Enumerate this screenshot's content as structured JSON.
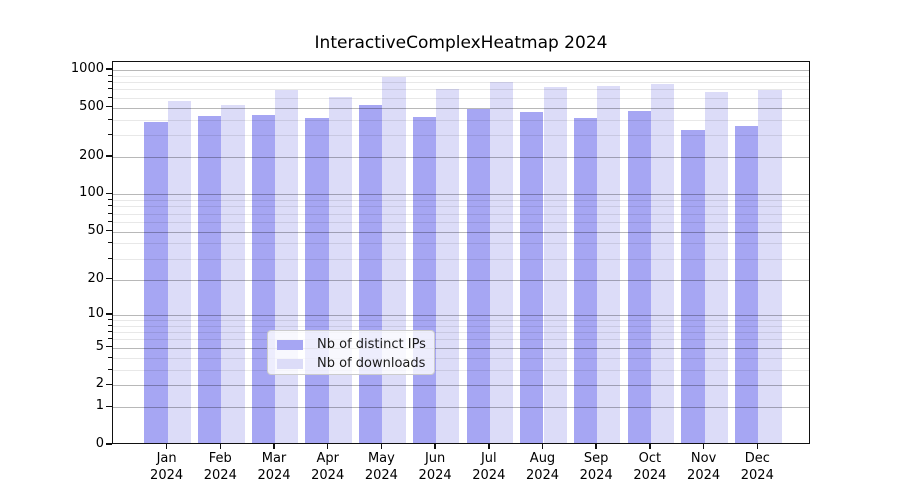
{
  "title": "InteractiveComplexHeatmap 2024",
  "chart_data": {
    "type": "bar",
    "title": "InteractiveComplexHeatmap 2024",
    "categories": [
      "Jan 2024",
      "Feb 2024",
      "Mar 2024",
      "Apr 2024",
      "May 2024",
      "Jun 2024",
      "Jul 2024",
      "Aug 2024",
      "Sep 2024",
      "Oct 2024",
      "Nov 2024",
      "Dec 2024"
    ],
    "series": [
      {
        "name": "Nb of distinct IPs",
        "color": "#a6a6f3",
        "values": [
          370,
          410,
          420,
          400,
          505,
          405,
          465,
          445,
          395,
          455,
          320,
          345
        ]
      },
      {
        "name": "Nb of downloads",
        "color": "#dcdcf8",
        "values": [
          540,
          505,
          665,
          590,
          845,
          675,
          770,
          700,
          720,
          745,
          645,
          670
        ]
      }
    ],
    "yscale": "log1p",
    "y_ticks": [
      0,
      1,
      2,
      5,
      10,
      20,
      50,
      100,
      200,
      500,
      1000
    ],
    "y_minor_ticks": [
      3,
      4,
      6,
      7,
      8,
      9,
      30,
      40,
      60,
      70,
      80,
      90,
      300,
      400,
      600,
      700,
      800,
      900
    ],
    "ylim": [
      0,
      1150
    ],
    "xlabel": "",
    "ylabel": "",
    "grid": true,
    "legend_position": "lower center"
  }
}
